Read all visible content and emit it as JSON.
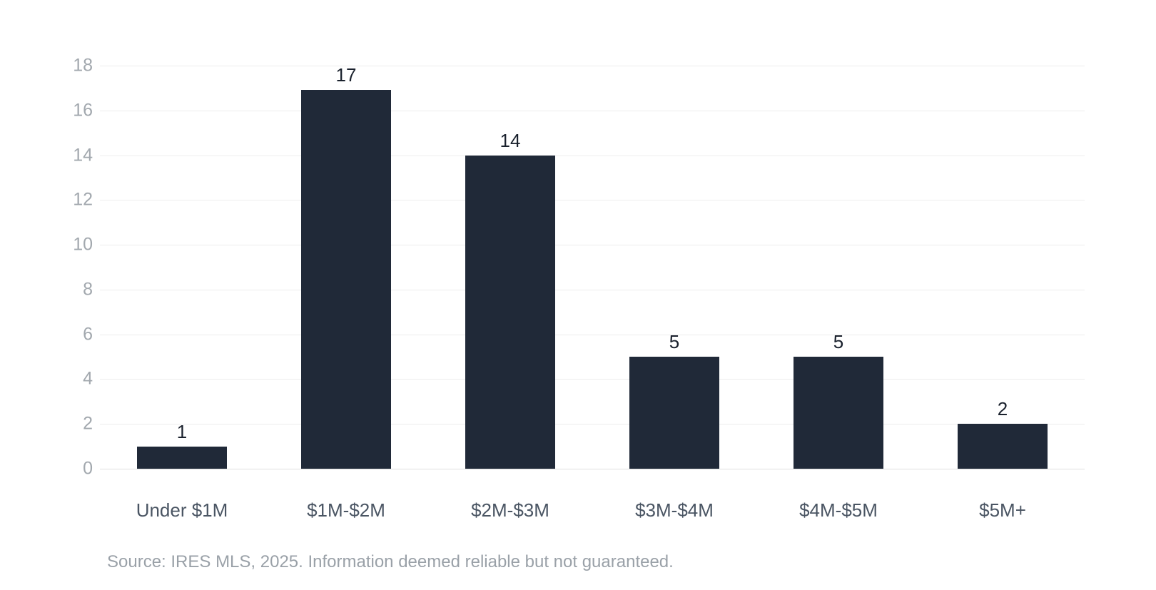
{
  "chart_data": {
    "type": "bar",
    "title": "",
    "xlabel": "",
    "ylabel": "",
    "categories": [
      "Under $1M",
      "$1M-$2M",
      "$2M-$3M",
      "$3M-$4M",
      "$4M-$5M",
      "$5M+"
    ],
    "values": [
      1,
      17,
      14,
      5,
      5,
      2
    ],
    "value_labels": [
      "1",
      "17",
      "14",
      "5",
      "5",
      "2"
    ],
    "ylim": [
      0,
      18
    ],
    "yticks": [
      0,
      2,
      4,
      6,
      8,
      10,
      12,
      14,
      16,
      18
    ],
    "grid": "horizontal",
    "legend": "none",
    "bar_color": "#202938",
    "background_color": "#ffffff"
  },
  "footer": {
    "source_text": "Source: IRES MLS, 2025. Information deemed reliable but not guaranteed."
  }
}
